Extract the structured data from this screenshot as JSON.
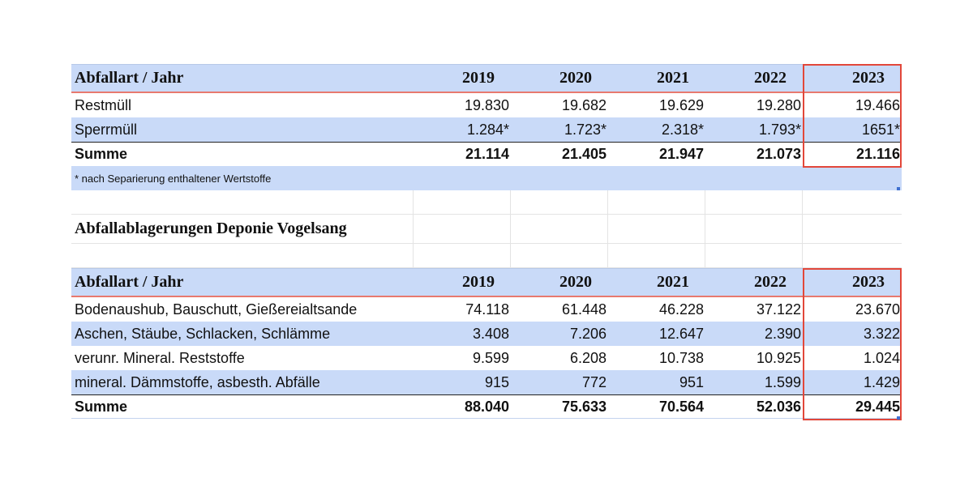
{
  "table1": {
    "header": {
      "label": "Abfallart / Jahr",
      "years": [
        "2019",
        "2020",
        "2021",
        "2022",
        "2023"
      ]
    },
    "rows": [
      {
        "label": "Restmüll",
        "values": [
          "19.830",
          "19.682",
          "19.629",
          "19.280",
          "19.466"
        ]
      },
      {
        "label": "Sperrmüll",
        "values": [
          "1.284*",
          "1.723*",
          "2.318*",
          "1.793*",
          "1651*"
        ]
      }
    ],
    "sum": {
      "label": "Summe",
      "values": [
        "21.114",
        "21.405",
        "21.947",
        "21.073",
        "21.116"
      ]
    },
    "footnote": "* nach Separierung enthaltener Wertstoffe"
  },
  "section_title": "Abfallablagerungen Deponie Vogelsang",
  "table2": {
    "header": {
      "label": "Abfallart / Jahr",
      "years": [
        "2019",
        "2020",
        "2021",
        "2022",
        "2023"
      ]
    },
    "rows": [
      {
        "label": "Bodenaushub, Bauschutt, Gießereialtsande",
        "values": [
          "74.118",
          "61.448",
          "46.228",
          "37.122",
          "23.670"
        ]
      },
      {
        "label": "Aschen, Stäube, Schlacken, Schlämme",
        "values": [
          "3.408",
          "7.206",
          "12.647",
          "2.390",
          "3.322"
        ]
      },
      {
        "label": "verunr. Mineral. Reststoffe",
        "values": [
          "9.599",
          "6.208",
          "10.738",
          "10.925",
          "1.024"
        ]
      },
      {
        "label": "mineral. Dämmstoffe, asbesth. Abfälle",
        "values": [
          "915",
          "772",
          "951",
          "1.599",
          "1.429"
        ]
      }
    ],
    "sum": {
      "label": "Summe",
      "values": [
        "88.040",
        "75.633",
        "70.564",
        "52.036",
        "29.445"
      ]
    }
  },
  "colors": {
    "header_fill": "#c9daf8",
    "highlight_border": "#e2473a",
    "header_underline": "#e8796f"
  }
}
